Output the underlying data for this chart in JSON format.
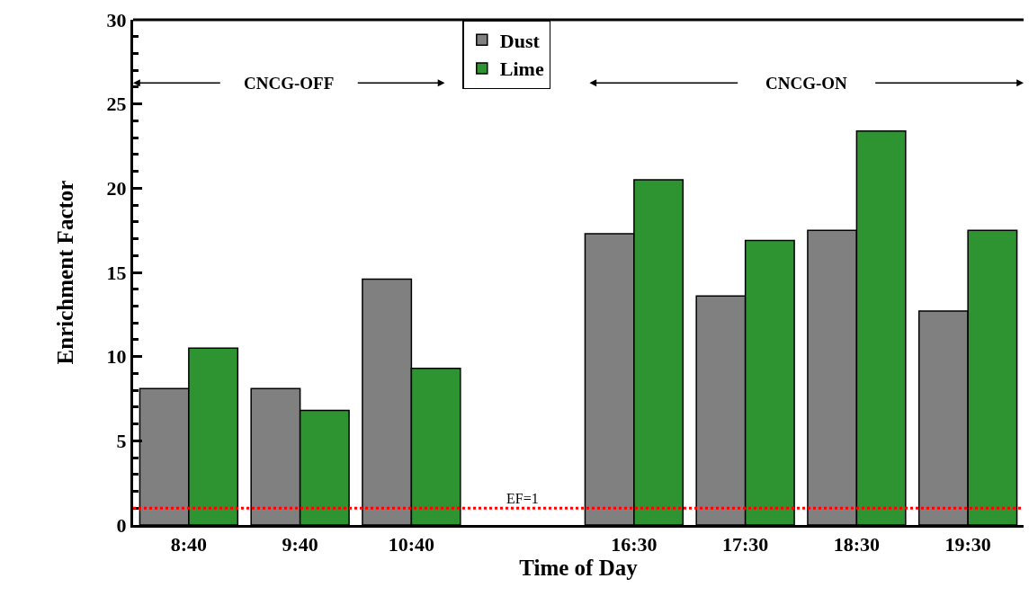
{
  "chart_data": {
    "type": "bar",
    "xlabel": "Time of Day",
    "ylabel": "Enrichment Factor",
    "categories": [
      "8:40",
      "9:40",
      "10:40",
      null,
      "16:30",
      "17:30",
      "18:30",
      "19:30"
    ],
    "series": [
      {
        "name": "Dust",
        "color": "#808080",
        "values": [
          8.1,
          8.1,
          14.6,
          null,
          17.3,
          13.6,
          17.5,
          12.7
        ]
      },
      {
        "name": "Lime",
        "color": "#2e9331",
        "values": [
          10.5,
          6.8,
          9.3,
          null,
          20.5,
          16.9,
          23.4,
          17.5
        ]
      }
    ],
    "ylim": [
      0,
      30
    ],
    "yticks": [
      0,
      5,
      10,
      15,
      20,
      25,
      30
    ],
    "grid": false,
    "legend": "top",
    "ref_lines": [
      {
        "axis": "y",
        "value": 1,
        "label": "EF=1",
        "color": "#ff0000",
        "line_style": "dotted"
      }
    ],
    "annotations": [
      "CNCG-OFF",
      "CNCG-ON"
    ]
  }
}
